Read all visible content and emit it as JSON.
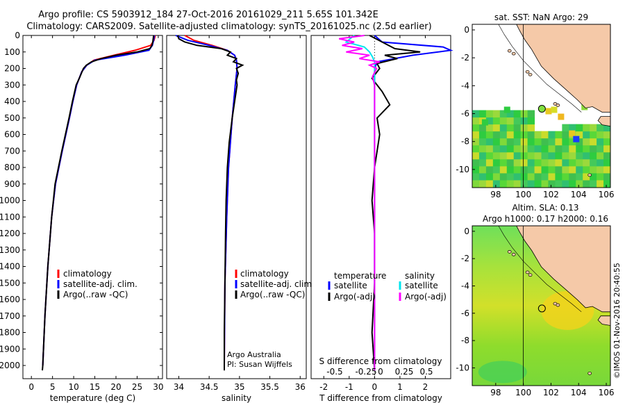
{
  "header": {
    "line1": "Argo profile: CS 5903912_184 27-Oct-2016 20161029_211 5.65S 101.342E",
    "line2": "Climatology: CARS2009. Satellite-adjusted climatology: synTS_20161025.nc (2.5d earlier)"
  },
  "chart_data": [
    {
      "type": "line",
      "id": "temperature",
      "xlabel": "temperature (deg C)",
      "xlim": [
        -2,
        31
      ],
      "ylim": [
        2080,
        0
      ],
      "xticks": [
        0,
        5,
        10,
        15,
        20,
        25,
        30
      ],
      "yticks": [
        0,
        100,
        200,
        300,
        400,
        500,
        600,
        700,
        800,
        900,
        1000,
        1100,
        1200,
        1300,
        1400,
        1500,
        1600,
        1700,
        1800,
        1900,
        2000
      ],
      "legend": [
        "climatology",
        "satellite-adj. clim.",
        "Argo(..raw -QC)"
      ],
      "colors": [
        "#ff0000",
        "#0000ff",
        "#000000"
      ],
      "series": [
        {
          "name": "climatology",
          "depth": [
            0,
            30,
            60,
            90,
            120,
            150,
            180,
            220,
            300,
            400,
            500,
            700,
            900,
            1100,
            1400,
            1700,
            2000
          ],
          "values": [
            29.3,
            29.0,
            28.2,
            24.5,
            19.5,
            14.8,
            13.1,
            11.9,
            10.7,
            9.8,
            9.0,
            7.3,
            5.7,
            4.8,
            3.9,
            3.2,
            2.7
          ]
        },
        {
          "name": "satellite-adj. clim.",
          "depth": [
            0,
            30,
            60,
            90,
            120,
            150,
            180,
            220,
            300,
            400,
            500,
            700,
            900,
            1100,
            1400,
            1700,
            2000
          ],
          "values": [
            29.1,
            28.9,
            28.6,
            27.8,
            22.0,
            15.0,
            13.1,
            11.9,
            10.7,
            9.8,
            9.0,
            7.3,
            5.7,
            4.8,
            3.9,
            3.2,
            2.7
          ]
        },
        {
          "name": "Argo(..raw -QC)",
          "depth": [
            0,
            20,
            40,
            60,
            80,
            100,
            120,
            140,
            160,
            180,
            200,
            250,
            300,
            400,
            500,
            700,
            900,
            1100,
            1400,
            1700,
            2000,
            2030
          ],
          "values": [
            28.9,
            28.8,
            28.7,
            28.5,
            28.0,
            25.0,
            20.0,
            16.5,
            14.2,
            13.0,
            12.3,
            11.5,
            10.6,
            9.7,
            8.9,
            7.2,
            5.6,
            4.8,
            3.9,
            3.2,
            2.7,
            2.6
          ]
        }
      ]
    },
    {
      "type": "line",
      "id": "salinity",
      "xlabel": "salinity",
      "xlim": [
        33.8,
        36.1
      ],
      "ylim": [
        2080,
        0
      ],
      "xticks": [
        34,
        34.5,
        35,
        35.5,
        36
      ],
      "legend": [
        "climatology",
        "satellite-adj. clim.",
        "Argo(..raw -QC)"
      ],
      "colors": [
        "#ff0000",
        "#0000ff",
        "#000000"
      ],
      "series": [
        {
          "name": "climatology",
          "depth": [
            0,
            30,
            60,
            90,
            120,
            150,
            200,
            300,
            500,
            800,
            1100,
            1500,
            2000
          ],
          "values": [
            34.1,
            34.25,
            34.55,
            34.8,
            34.92,
            34.95,
            34.96,
            34.93,
            34.88,
            34.82,
            34.79,
            34.76,
            34.75
          ]
        },
        {
          "name": "satellite-adj. clim.",
          "depth": [
            0,
            30,
            60,
            90,
            120,
            150,
            200,
            300,
            500,
            800,
            1100,
            1500,
            2000
          ],
          "values": [
            33.95,
            34.15,
            34.5,
            34.8,
            34.92,
            34.95,
            34.96,
            34.93,
            34.88,
            34.82,
            34.79,
            34.76,
            34.75
          ]
        },
        {
          "name": "Argo(..raw -QC)",
          "depth": [
            0,
            20,
            40,
            60,
            80,
            100,
            120,
            140,
            160,
            180,
            200,
            230,
            270,
            300,
            400,
            500,
            650,
            800,
            1000,
            1200,
            1500,
            1800,
            2030
          ],
          "values": [
            33.98,
            34.0,
            34.1,
            34.3,
            34.7,
            34.85,
            34.8,
            34.95,
            34.9,
            35.05,
            34.95,
            34.98,
            34.95,
            34.96,
            34.92,
            34.88,
            34.83,
            34.8,
            34.78,
            34.77,
            34.76,
            34.75,
            34.75
          ]
        }
      ],
      "annotations": [
        "Argo Australia",
        "PI: Susan Wijffels"
      ]
    },
    {
      "type": "line",
      "id": "difference",
      "xlabel": "T difference from climatology",
      "xlabel_top": "S difference from climatology",
      "xlim": [
        -2.5,
        3
      ],
      "ylim": [
        2080,
        0
      ],
      "xticks": [
        -2,
        -1,
        0,
        1,
        2
      ],
      "top_ticks": [
        "-0.5",
        "-0.25",
        "0",
        "0.25",
        "0.5"
      ],
      "legend_groups": [
        "temperature",
        "salinity"
      ],
      "legend": [
        "satellite",
        "Argo(-adj)",
        "satellite",
        "Argo(-adj)"
      ],
      "colors": [
        "#0000ff",
        "#000000",
        "#00e5ee",
        "#ff00ff"
      ],
      "series": [
        {
          "name": "temperature satellite",
          "depth": [
            0,
            40,
            70,
            90,
            120,
            160,
            200,
            300,
            600,
            1000,
            1500,
            2030
          ],
          "values": [
            0.0,
            0.3,
            2.7,
            3.0,
            1.5,
            0.1,
            0.0,
            0.0,
            0.0,
            0.0,
            0.0,
            0.0
          ]
        },
        {
          "name": "temperature Argo(-adj)",
          "depth": [
            0,
            40,
            80,
            100,
            120,
            140,
            170,
            200,
            260,
            340,
            420,
            500,
            600,
            800,
            1000,
            1200,
            1500,
            1800,
            2030
          ],
          "values": [
            -0.2,
            0.3,
            0.8,
            1.8,
            0.4,
            0.9,
            0.1,
            0.2,
            -0.1,
            0.3,
            0.6,
            0.1,
            0.2,
            0.0,
            -0.1,
            0.0,
            0.0,
            -0.1,
            0.0
          ]
        },
        {
          "name": "salinity satellite",
          "depth": [
            0,
            40,
            70,
            100,
            130,
            160,
            200,
            400,
            800,
            1200,
            2030
          ],
          "values": [
            -0.2,
            -0.28,
            -0.1,
            -0.05,
            -0.02,
            0.0,
            0.0,
            0.0,
            0.0,
            0.0,
            0.0
          ]
        },
        {
          "name": "salinity Argo(-adj)",
          "depth": [
            0,
            20,
            40,
            60,
            80,
            100,
            120,
            140,
            160,
            180,
            200,
            250,
            300,
            500,
            800,
            1200,
            1600,
            2030
          ],
          "values": [
            -0.1,
            -0.35,
            -0.2,
            -0.32,
            -0.12,
            -0.28,
            -0.05,
            -0.15,
            0.05,
            -0.05,
            0.02,
            -0.02,
            0.0,
            0.0,
            0.0,
            0.0,
            0.0,
            0.0
          ]
        }
      ]
    },
    {
      "type": "heatmap",
      "id": "sst-map",
      "title": "sat. SST: NaN Argo: 29",
      "xlim": [
        96.3,
        106.3
      ],
      "ylim": [
        -11.3,
        0.4
      ],
      "xticks": [
        98,
        100,
        102,
        104,
        106
      ],
      "yticks": [
        0,
        -2,
        -4,
        -6,
        -8,
        -10
      ],
      "argo_position": [
        101.342,
        -5.65
      ]
    },
    {
      "type": "heatmap",
      "id": "sla-map",
      "title": "Altim. SLA: 0.13",
      "subtitle": "Argo h1000: 0.17 h2000: 0.16",
      "xlim": [
        96.3,
        106.3
      ],
      "ylim": [
        -11.3,
        0.4
      ],
      "xticks": [
        98,
        100,
        102,
        104,
        106
      ],
      "yticks": [
        0,
        -2,
        -4,
        -6,
        -8,
        -10
      ],
      "argo_position": [
        101.342,
        -5.65
      ]
    }
  ],
  "credit": "©IMOS 01-Nov-2016 20:40:55"
}
